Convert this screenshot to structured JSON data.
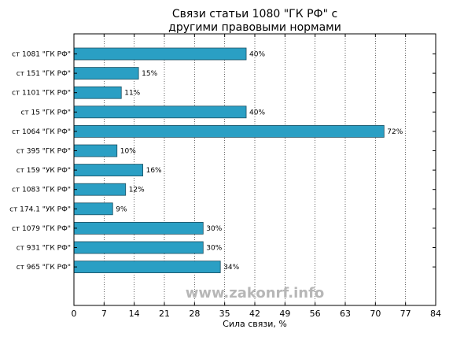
{
  "chart_data": {
    "type": "bar",
    "orientation": "horizontal",
    "title_lines": [
      "Связи статьи 1080 \"ГК РФ\" с",
      "другими правовыми нормами"
    ],
    "xlabel": "Сила связи, %",
    "ylabel": "",
    "xlim": [
      0,
      84
    ],
    "x_ticks": [
      0,
      7,
      14,
      21,
      28,
      35,
      42,
      49,
      56,
      63,
      70,
      77,
      84
    ],
    "categories": [
      "ст 1081 \"ГК РФ\"",
      "ст 151 \"ГК РФ\"",
      "ст 1101 \"ГК РФ\"",
      "ст 15 \"ГК РФ\"",
      "ст 1064 \"ГК РФ\"",
      "ст 395 \"ГК РФ\"",
      "ст 159 \"УК РФ\"",
      "ст 1083 \"ГК РФ\"",
      "ст 174.1 \"УК РФ\"",
      "ст 1079 \"ГК РФ\"",
      "ст 931 \"ГК РФ\"",
      "ст 965 \"ГК РФ\""
    ],
    "values": [
      40,
      15,
      11,
      40,
      72,
      10,
      16,
      12,
      9,
      30,
      30,
      34
    ],
    "value_labels": [
      "40%",
      "15%",
      "11%",
      "40%",
      "72%",
      "10%",
      "16%",
      "12%",
      "9%",
      "30%",
      "30%",
      "34%"
    ],
    "grid": true,
    "bar_color": "#2a9fc4",
    "watermark": "www.zakonrf.info"
  }
}
